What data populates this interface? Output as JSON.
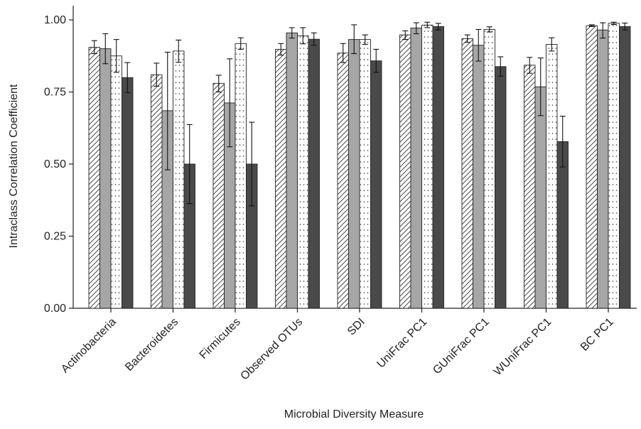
{
  "chart_data": {
    "type": "bar",
    "xlabel": "Microbial Diversity Measure",
    "ylabel": "Intraclass Correlation Coefficient",
    "ylim": [
      0,
      1.0
    ],
    "yticks": [
      "0.00",
      "0.25",
      "0.50",
      "0.75",
      "1.00"
    ],
    "categories": [
      "Actinobacteria",
      "Bacteroidetes",
      "Firmicutes",
      "Observed OTUs",
      "SDI",
      "UniFrac PC1",
      "GUniFrac PC1",
      "WUniFrac PC1",
      "BC PC1"
    ],
    "series": [
      {
        "pattern": "hatch",
        "color": "#ffffff",
        "values": [
          0.905,
          0.81,
          0.78,
          0.898,
          0.885,
          0.948,
          0.935,
          0.843,
          0.98
        ],
        "err_low": [
          0.883,
          0.77,
          0.75,
          0.878,
          0.852,
          0.932,
          0.922,
          0.815,
          0.977
        ],
        "err_high": [
          0.928,
          0.85,
          0.808,
          0.918,
          0.918,
          0.962,
          0.948,
          0.87,
          0.983
        ]
      },
      {
        "pattern": "solid",
        "color": "#a6a6a6",
        "values": [
          0.9,
          0.685,
          0.712,
          0.955,
          0.932,
          0.972,
          0.912,
          0.768,
          0.965
        ],
        "err_low": [
          0.848,
          0.48,
          0.56,
          0.937,
          0.883,
          0.952,
          0.857,
          0.668,
          0.937
        ],
        "err_high": [
          0.952,
          0.888,
          0.865,
          0.973,
          0.983,
          0.99,
          0.967,
          0.868,
          0.99
        ]
      },
      {
        "pattern": "dots",
        "color": "#ffffff",
        "values": [
          0.875,
          0.892,
          0.918,
          0.945,
          0.932,
          0.982,
          0.967,
          0.915,
          0.988
        ],
        "err_low": [
          0.818,
          0.853,
          0.898,
          0.917,
          0.915,
          0.973,
          0.958,
          0.892,
          0.984
        ],
        "err_high": [
          0.932,
          0.93,
          0.938,
          0.973,
          0.948,
          0.992,
          0.976,
          0.938,
          0.992
        ]
      },
      {
        "pattern": "solid",
        "color": "#4a4a4a",
        "values": [
          0.8,
          0.5,
          0.5,
          0.933,
          0.858,
          0.977,
          0.838,
          0.578,
          0.977
        ],
        "err_low": [
          0.748,
          0.363,
          0.355,
          0.912,
          0.818,
          0.965,
          0.805,
          0.49,
          0.965
        ],
        "err_high": [
          0.852,
          0.637,
          0.645,
          0.955,
          0.898,
          0.988,
          0.872,
          0.666,
          0.989
        ]
      }
    ],
    "grid": false,
    "legend": "none"
  }
}
